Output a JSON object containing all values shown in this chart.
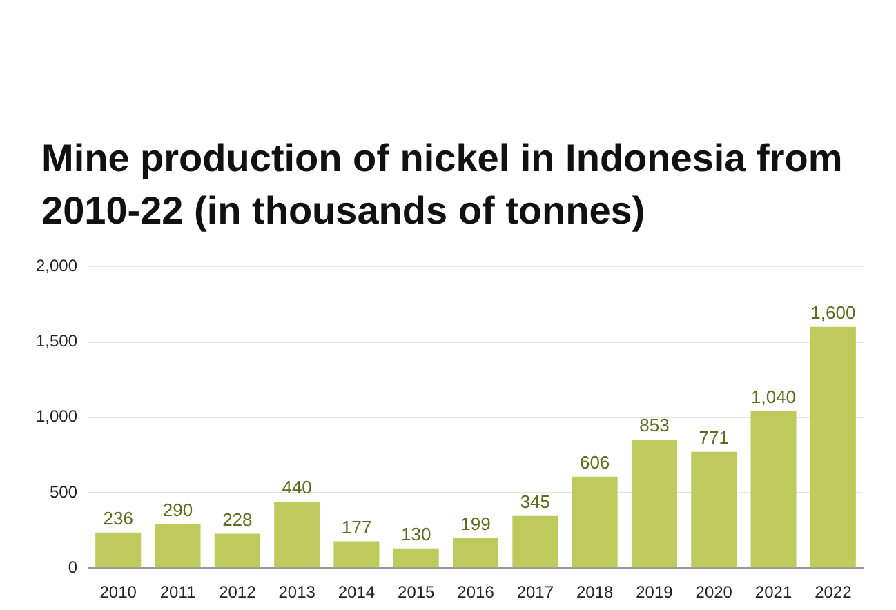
{
  "chart_data": {
    "type": "bar",
    "title": "Mine production of nickel in Indonesia from 2010-22 (in thousands of tonnes)",
    "categories": [
      "2010",
      "2011",
      "2012",
      "2013",
      "2014",
      "2015",
      "2016",
      "2017",
      "2018",
      "2019",
      "2020",
      "2021",
      "2022"
    ],
    "values": [
      236,
      290,
      228,
      440,
      177,
      130,
      199,
      345,
      606,
      853,
      771,
      1040,
      1600
    ],
    "color": "#bfca5c",
    "ylim": [
      0,
      2000
    ],
    "yticks": [
      0,
      {
        "value": 500,
        "label": "500"
      },
      {
        "value": 1000,
        "label": "1,000"
      },
      {
        "value": 1500,
        "label": "1,500"
      },
      {
        "value": 2000,
        "label": "2,000"
      }
    ],
    "value_labels": [
      "236",
      "290",
      "228",
      "440",
      "177",
      "130",
      "199",
      "345",
      "606",
      "853",
      "771",
      "1,040",
      "1,600"
    ],
    "grid": "y",
    "legend": false
  }
}
